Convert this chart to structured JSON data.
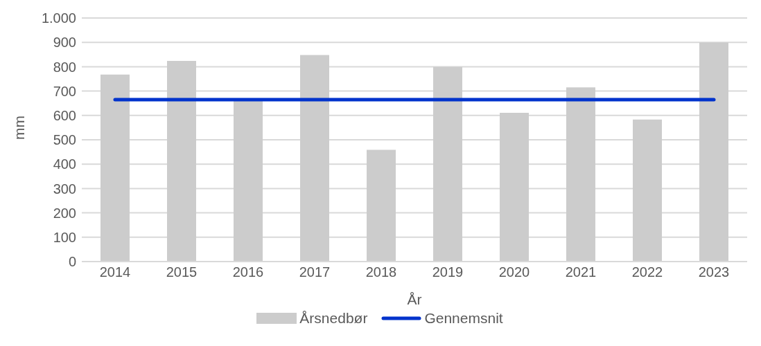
{
  "chart_data": {
    "type": "bar",
    "xlabel": "År",
    "ylabel": "mm",
    "categories": [
      "2014",
      "2015",
      "2016",
      "2017",
      "2018",
      "2019",
      "2020",
      "2021",
      "2022",
      "2023"
    ],
    "series": [
      {
        "name": "Årsnedbør",
        "color": "#cccccc",
        "values": [
          768,
          824,
          660,
          848,
          459,
          799,
          611,
          715,
          583,
          899
        ]
      },
      {
        "name": "Gennemsnit",
        "type": "line",
        "color": "#0033cc",
        "values": [
          665,
          665,
          665,
          665,
          665,
          665,
          665,
          665,
          665,
          665
        ]
      }
    ],
    "ylim": [
      0,
      1000
    ],
    "yticks": [
      0,
      100,
      200,
      300,
      400,
      500,
      600,
      700,
      800,
      900,
      {
        "value": 1000,
        "label": "1.000"
      }
    ],
    "grid": "y",
    "legend": "bottom",
    "marker": "none",
    "line_style": "solid"
  }
}
